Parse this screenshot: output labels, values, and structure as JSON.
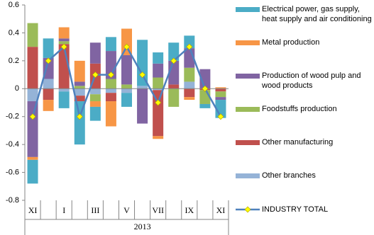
{
  "chart_data": {
    "type": "bar",
    "stacked": true,
    "categories": [
      "XI",
      null,
      "I",
      null,
      "III",
      null,
      "V",
      null,
      "VII",
      null,
      "IX",
      null,
      "XI"
    ],
    "x_group_label": "2013",
    "ylim": [
      -0.8,
      0.6
    ],
    "yticks": [
      {
        "value": -0.8,
        "label": "-0.8"
      },
      {
        "value": -0.6,
        "label": "-0.6"
      },
      {
        "value": -0.4,
        "label": "-0.4"
      },
      {
        "value": -0.2,
        "label": "-0.2"
      },
      0,
      {
        "value": 0.2,
        "label": "0.2"
      },
      {
        "value": 0.4,
        "label": "0.4"
      },
      {
        "value": 0.6,
        "label": "0.6"
      }
    ],
    "series": [
      {
        "name": "Electrical power, gas supply, heat supply and air conditioning",
        "color": "#4bacc6",
        "values": [
          -0.17,
          0.14,
          -0.12,
          -0.31,
          -0.1,
          0.1,
          -0.1,
          0.33,
          0.08,
          0.13,
          0.09,
          -0.03,
          -0.13
        ]
      },
      {
        "name": "Metal production",
        "color": "#f79646",
        "values": [
          -0.02,
          -0.08,
          0.08,
          0.15,
          -0.04,
          -0.18,
          0.19,
          0,
          -0.02,
          0,
          -0.02,
          0,
          0.01
        ]
      },
      {
        "name": "Production of wood pulp and wood products",
        "color": "#8064a2",
        "values": [
          -0.4,
          0.15,
          0.02,
          0.03,
          0.15,
          0.2,
          0.21,
          -0.25,
          0.1,
          0.17,
          0.14,
          0.14,
          -0.02
        ]
      },
      {
        "name": "Foodstuffs production",
        "color": "#9bbb59",
        "values": [
          0.17,
          0,
          0.02,
          0.02,
          -0.05,
          0.07,
          0.03,
          0,
          0.08,
          -0.13,
          0.1,
          -0.1,
          -0.04
        ]
      },
      {
        "name": "Other manufacturing",
        "color": "#c0504d",
        "values": [
          0.3,
          -0.08,
          0.32,
          -0.04,
          0.18,
          -0.06,
          0,
          0,
          -0.33,
          0.03,
          -0.06,
          -0.01,
          -0.02
        ]
      },
      {
        "name": "Other branches",
        "color": "#95b3d7",
        "values": [
          -0.09,
          0.07,
          -0.02,
          -0.05,
          -0.04,
          -0.03,
          -0.03,
          0.02,
          -0.01,
          0,
          0.05,
          0,
          0
        ]
      },
      {
        "name": "INDUSTRY TOTAL",
        "type": "line",
        "color": "#4f81bd",
        "marker_color": "#ffff00",
        "values": [
          -0.2,
          0.2,
          0.3,
          -0.2,
          0.1,
          0.1,
          0.3,
          0.1,
          -0.1,
          0.2,
          0.3,
          0,
          -0.2
        ]
      }
    ]
  }
}
